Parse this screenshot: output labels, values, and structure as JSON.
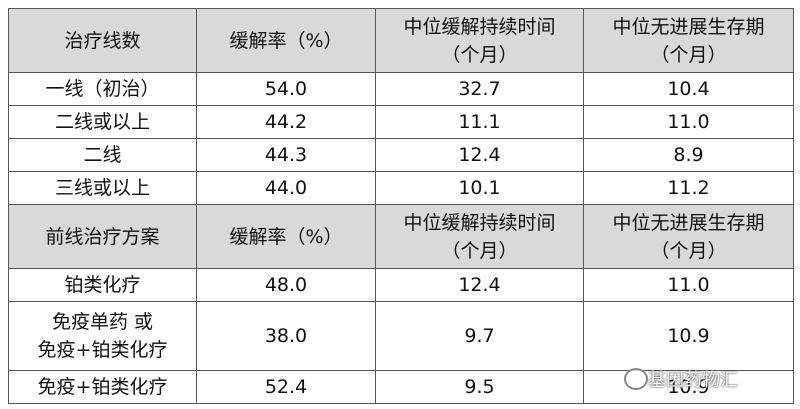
{
  "table": {
    "sections": [
      {
        "header": [
          "治疗线数",
          "缓解率（%）",
          "中位缓解持续时间\n（个月）",
          "中位无进展生存期\n（个月）"
        ],
        "rows": [
          [
            "一线（初治）",
            "54.0",
            "32.7",
            "10.4"
          ],
          [
            "二线或以上",
            "44.2",
            "11.1",
            "11.0"
          ],
          [
            "二线",
            "44.3",
            "12.4",
            "8.9"
          ],
          [
            "三线或以上",
            "44.0",
            "10.1",
            "11.2"
          ]
        ]
      },
      {
        "header": [
          "前线治疗方案",
          "缓解率（%）",
          "中位缓解持续时间\n（个月）",
          "中位无进展生存期\n（个月）"
        ],
        "rows": [
          [
            "铂类化疗",
            "48.0",
            "12.4",
            "11.0"
          ],
          [
            "免疫单药 或\n免疫+铂类化疗",
            "38.0",
            "9.7",
            "10.9"
          ],
          [
            "免疫+铂类化疗",
            "52.4",
            "9.5",
            "10.9"
          ]
        ]
      }
    ]
  },
  "watermark": "基因药物汇"
}
